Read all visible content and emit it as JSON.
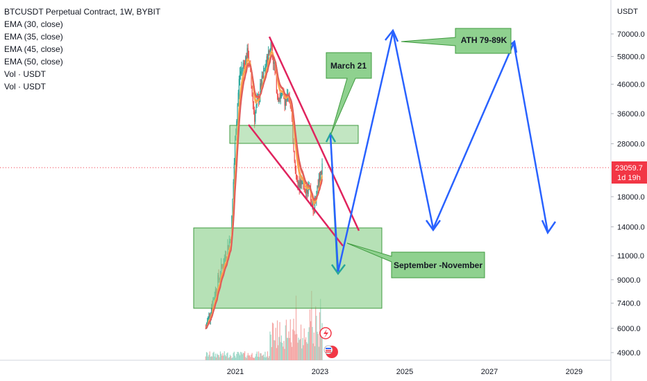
{
  "legend": {
    "title": "BTCUSDT Perpetual Contract, 1W, BYBIT",
    "lines": [
      "EMA (30, close)",
      "EMA (35, close)",
      "EMA (45, close)",
      "EMA (50, close)",
      "Vol · USDT",
      "Vol · USDT"
    ]
  },
  "price_axis": {
    "unit": "USDT",
    "current_price": "23059.7",
    "countdown": "1d 19h"
  },
  "colors": {
    "up": "#26a69a",
    "down": "#ef5350",
    "zone_fill": "#8fd18f",
    "zone_stroke": "#3f9a3f",
    "trendline": "#e0245e",
    "projection": "#2962ff",
    "price_label": "#f23645"
  },
  "annotations": {
    "march": "March 21",
    "ath": "ATH 79-89K",
    "sept": "September -November"
  },
  "chart_data": {
    "type": "candlestick",
    "title": "BTCUSDT Perpetual Contract, 1W, BYBIT",
    "y_scale": "log",
    "x_ticks": [
      "2021",
      "2023",
      "2025",
      "2027",
      "2029"
    ],
    "y_ticks": [
      "70000.0",
      "58000.0",
      "46000.0",
      "36000.0",
      "28000.0",
      "23059.7",
      "18000.0",
      "14000.0",
      "11000.0",
      "9000.0",
      "7400.0",
      "6000.0",
      "4900.0"
    ],
    "last_price": 23059.7,
    "indicators": [
      "EMA (30, close)",
      "EMA (35, close)",
      "EMA (45, close)",
      "EMA (50, close)"
    ],
    "price_path_approx": [
      [
        2020.3,
        6000
      ],
      [
        2020.6,
        9000
      ],
      [
        2020.9,
        13000
      ],
      [
        2021.0,
        30000
      ],
      [
        2021.1,
        50000
      ],
      [
        2021.3,
        60000
      ],
      [
        2021.45,
        35000
      ],
      [
        2021.6,
        45000
      ],
      [
        2021.85,
        65000
      ],
      [
        2022.0,
        42000
      ],
      [
        2022.3,
        40000
      ],
      [
        2022.45,
        20000
      ],
      [
        2022.7,
        19500
      ],
      [
        2022.85,
        16500
      ],
      [
        2023.05,
        23000
      ]
    ],
    "zones": [
      {
        "from": 2021.0,
        "to": 2024.0,
        "price_low": 26000,
        "price_high": 32000
      },
      {
        "from": 2020.6,
        "to": 2024.4,
        "price_low": 7200,
        "price_high": 13500
      }
    ],
    "projection_path": [
      [
        2023.1,
        29000
      ],
      [
        2023.4,
        10000
      ],
      [
        2024.7,
        70000
      ],
      [
        2025.6,
        13500
      ],
      [
        2027.4,
        64000
      ],
      [
        2028.4,
        13000
      ]
    ]
  }
}
